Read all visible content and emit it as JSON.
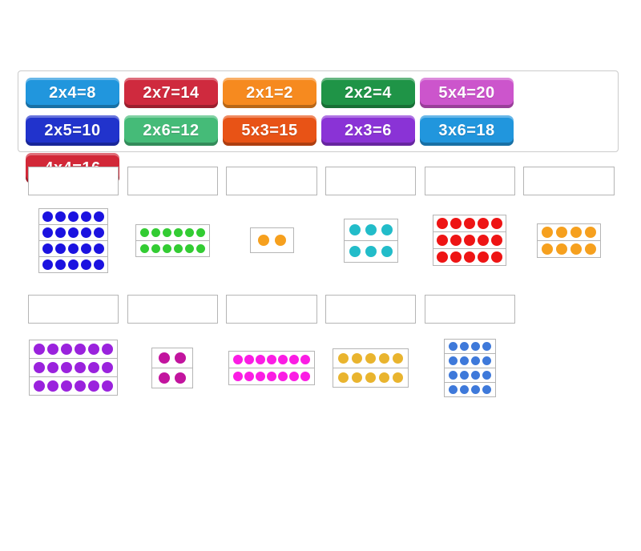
{
  "board": {
    "colors": {
      "page_background": "#ffffff",
      "tray_border": "#cbcbcb",
      "box_border": "#b5b5b5"
    },
    "tray": {
      "tiles": [
        {
          "label": "2x4=8",
          "color": "#2196dd"
        },
        {
          "label": "2x7=14",
          "color": "#cf2a3e"
        },
        {
          "label": "2x1=2",
          "color": "#f68a1f"
        },
        {
          "label": "2x2=4",
          "color": "#1f9447"
        },
        {
          "label": "5x4=20",
          "color": "#cc55cc"
        },
        {
          "label": "2x5=10",
          "color": "#2133cc"
        },
        {
          "label": "2x6=12",
          "color": "#45bb78"
        },
        {
          "label": "5x3=15",
          "color": "#e85316"
        },
        {
          "label": "2x3=6",
          "color": "#8a33d6"
        },
        {
          "label": "3x6=18",
          "color": "#2196dd"
        },
        {
          "label": "4x4=16",
          "color": "#d22838"
        }
      ]
    },
    "groups": [
      {
        "questions": [
          {
            "array": {
              "rows": 4,
              "cols": 5,
              "dot_color": "#1b12e0",
              "dot_size": 13,
              "gap": 3,
              "pad_x": 4,
              "pad_y": 3
            }
          },
          {
            "array": {
              "rows": 2,
              "cols": 6,
              "dot_color": "#33cc33",
              "dot_size": 11,
              "gap": 3,
              "pad_x": 5,
              "pad_y": 4
            }
          },
          {
            "array": {
              "rows": 1,
              "cols": 2,
              "dot_color": "#f6a01e",
              "dot_size": 14,
              "gap": 7,
              "pad_x": 9,
              "pad_y": 8
            }
          },
          {
            "array": {
              "rows": 2,
              "cols": 3,
              "dot_color": "#22bcc9",
              "dot_size": 14,
              "gap": 6,
              "pad_x": 6,
              "pad_y": 6
            }
          },
          {
            "array": {
              "rows": 3,
              "cols": 5,
              "dot_color": "#ee1414",
              "dot_size": 14,
              "gap": 3,
              "pad_x": 4,
              "pad_y": 3
            }
          },
          {
            "array": {
              "rows": 2,
              "cols": 4,
              "dot_color": "#f6a01e",
              "dot_size": 14,
              "gap": 4,
              "pad_x": 5,
              "pad_y": 3
            }
          }
        ]
      },
      {
        "questions": [
          {
            "array": {
              "rows": 3,
              "cols": 6,
              "dot_color": "#9a22dd",
              "dot_size": 14,
              "gap": 3,
              "pad_x": 5,
              "pad_y": 4
            }
          },
          {
            "array": {
              "rows": 2,
              "cols": 2,
              "dot_color": "#c2149e",
              "dot_size": 14,
              "gap": 6,
              "pad_x": 8,
              "pad_y": 5
            }
          },
          {
            "array": {
              "rows": 2,
              "cols": 7,
              "dot_color": "#fb1ce4",
              "dot_size": 12,
              "gap": 2,
              "pad_x": 5,
              "pad_y": 4
            }
          },
          {
            "array": {
              "rows": 2,
              "cols": 5,
              "dot_color": "#e9b42e",
              "dot_size": 13,
              "gap": 4,
              "pad_x": 6,
              "pad_y": 5
            }
          },
          {
            "array": {
              "rows": 4,
              "cols": 4,
              "dot_color": "#3e79da",
              "dot_size": 11,
              "gap": 3,
              "pad_x": 5,
              "pad_y": 3
            }
          }
        ]
      }
    ]
  }
}
